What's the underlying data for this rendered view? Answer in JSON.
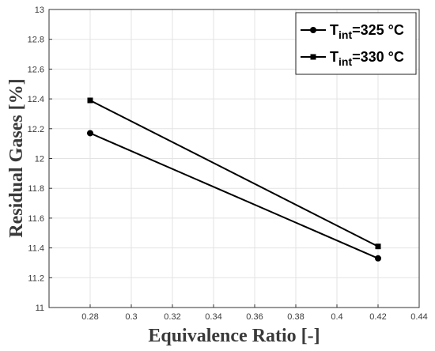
{
  "chart_data": {
    "type": "line",
    "xlabel": "Equivalence Ratio [-]",
    "ylabel": "Residual Gases [%]",
    "xlim": [
      0.26,
      0.44
    ],
    "ylim": [
      11,
      13
    ],
    "xticks": [
      0.28,
      0.3,
      0.32,
      0.34,
      0.36,
      0.38,
      0.4,
      0.42,
      0.44
    ],
    "xtick_labels": [
      "0.28",
      "0.3",
      "0.32",
      "0.34",
      "0.36",
      "0.38",
      "0.4",
      "0.42",
      "0.44"
    ],
    "yticks": [
      11,
      11.2,
      11.4,
      11.6,
      11.8,
      12,
      12.2,
      12.4,
      12.6,
      12.8,
      13
    ],
    "ytick_labels": [
      "11",
      "11.2",
      "11.4",
      "11.6",
      "11.8",
      "12",
      "12.2",
      "12.4",
      "12.6",
      "12.8",
      "13"
    ],
    "grid": true,
    "legend_position": "top-right",
    "x": [
      0.28,
      0.42
    ],
    "series": [
      {
        "name_main": "T",
        "name_sub": "int",
        "name_rest": "=325 °C",
        "marker": "circle",
        "color": "#000000",
        "values": [
          12.17,
          11.33
        ]
      },
      {
        "name_main": "T",
        "name_sub": "int",
        "name_rest": "=330 °C",
        "marker": "square",
        "color": "#000000",
        "values": [
          12.39,
          11.41
        ]
      }
    ]
  }
}
